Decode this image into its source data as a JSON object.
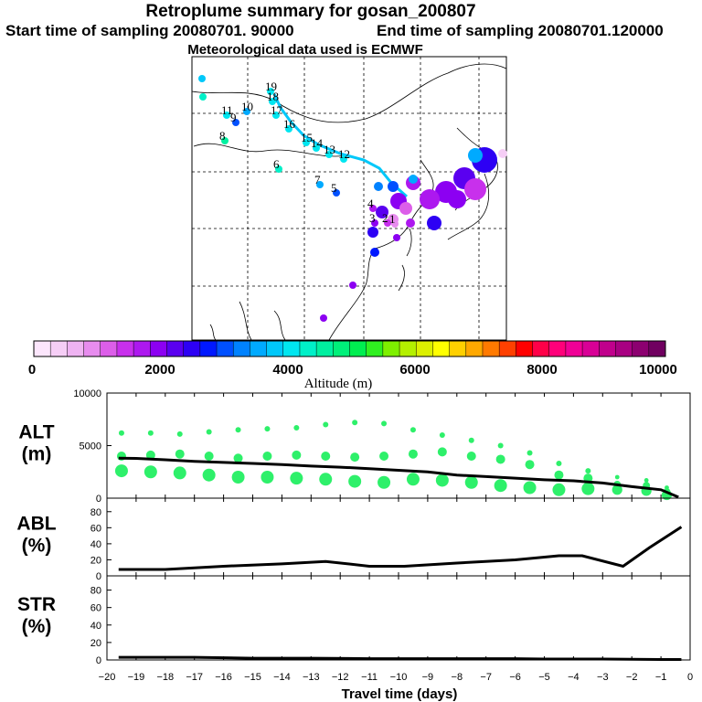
{
  "header": {
    "title": "Retroplume summary for gosan_200807",
    "start": "Start time of sampling 20080701. 90000",
    "end": "End time of sampling 20080701.120000",
    "met": "Meteorological data used is ECMWF"
  },
  "colorbar": {
    "label": "Altitude (m)",
    "ticks": [
      "0",
      "2000",
      "4000",
      "6000",
      "8000",
      "10000"
    ],
    "colors": [
      "#fce6fc",
      "#f6cef6",
      "#efb3f2",
      "#e78cee",
      "#dc5ee9",
      "#c830ec",
      "#ad18ef",
      "#8c00f2",
      "#5a00f0",
      "#2d00f4",
      "#0018ff",
      "#0050ff",
      "#0082ff",
      "#00aaff",
      "#00c8fa",
      "#00e6f0",
      "#00f0c8",
      "#00f0a0",
      "#00f07a",
      "#00ee50",
      "#30f020",
      "#7ef000",
      "#b4f000",
      "#dcf000",
      "#ffff00",
      "#ffd000",
      "#ffa800",
      "#ff7a00",
      "#ff4000",
      "#ff0000",
      "#ff0048",
      "#ff007a",
      "#f00096",
      "#d80096",
      "#c0008c",
      "#a80082",
      "#8c0070",
      "#700060"
    ]
  },
  "map": {
    "lat_labels": [],
    "markers": [
      {
        "n": "19",
        "c": "#00e6f0"
      },
      {
        "n": "18",
        "c": "#00e6f0"
      },
      {
        "n": "17",
        "c": "#00e6f0"
      },
      {
        "n": "16",
        "c": "#00e6f0"
      },
      {
        "n": "15",
        "c": "#00e6f0"
      },
      {
        "n": "14",
        "c": "#00e6f0"
      },
      {
        "n": "13",
        "c": "#00e6f0"
      },
      {
        "n": "12",
        "c": "#00e6f0"
      },
      {
        "n": "11",
        "c": "#00e6f0"
      },
      {
        "n": "10",
        "c": "#00aaff"
      },
      {
        "n": "9",
        "c": "#0050ff"
      },
      {
        "n": "8",
        "c": "#00f0a0"
      },
      {
        "n": "7",
        "c": "#00aaff"
      },
      {
        "n": "6",
        "c": "#00f0c8"
      },
      {
        "n": "5",
        "c": "#0050ff"
      },
      {
        "n": "4",
        "c": "#ad18ef"
      },
      {
        "n": "3",
        "c": "#8c00f2"
      },
      {
        "n": "2",
        "c": "#c830ec"
      },
      {
        "n": "1",
        "c": "#e78cee"
      }
    ]
  },
  "chart_data": [
    {
      "type": "scatter",
      "title": "ALT (m)",
      "ylabel_line1": "ALT",
      "ylabel_line2": "(m)",
      "ylim": [
        0,
        10000
      ],
      "yticks": [
        "10000",
        "5000",
        "0"
      ],
      "ytick_values": [
        10000,
        5000,
        0
      ],
      "xlim": [
        -20,
        0
      ],
      "mean_line": {
        "x": [
          -19.6,
          -19,
          -18,
          -17,
          -16,
          -15,
          -14,
          -13,
          -12,
          -11,
          -10,
          -9,
          -8,
          -7,
          -6,
          -5,
          -4,
          -3,
          -2,
          -1,
          -0.4
        ],
        "y": [
          3800,
          3780,
          3650,
          3500,
          3400,
          3300,
          3200,
          3050,
          2950,
          2800,
          2650,
          2500,
          2200,
          2050,
          1900,
          1750,
          1650,
          1450,
          1100,
          800,
          100
        ]
      },
      "clusters": [
        {
          "x": -19.5,
          "y": [
            6200,
            4000,
            2600
          ]
        },
        {
          "x": -18.5,
          "y": [
            6200,
            4100,
            2500
          ]
        },
        {
          "x": -17.5,
          "y": [
            6100,
            4200,
            2400
          ]
        },
        {
          "x": -16.5,
          "y": [
            6300,
            4000,
            2200
          ]
        },
        {
          "x": -15.5,
          "y": [
            6500,
            3800,
            2000
          ]
        },
        {
          "x": -14.5,
          "y": [
            6600,
            4000,
            2000
          ]
        },
        {
          "x": -13.5,
          "y": [
            6700,
            4100,
            1900
          ]
        },
        {
          "x": -12.5,
          "y": [
            7000,
            4000,
            1800
          ]
        },
        {
          "x": -11.5,
          "y": [
            7200,
            3900,
            1600
          ]
        },
        {
          "x": -10.5,
          "y": [
            7100,
            4000,
            1500
          ]
        },
        {
          "x": -9.5,
          "y": [
            6500,
            4200,
            1800
          ]
        },
        {
          "x": -8.5,
          "y": [
            6000,
            4400,
            1700
          ]
        },
        {
          "x": -7.5,
          "y": [
            5500,
            4000,
            1500
          ]
        },
        {
          "x": -6.5,
          "y": [
            5000,
            3700,
            1200
          ]
        },
        {
          "x": -5.5,
          "y": [
            4300,
            3200,
            1000
          ]
        },
        {
          "x": -4.5,
          "y": [
            3300,
            2200,
            800
          ]
        },
        {
          "x": -3.5,
          "y": [
            2600,
            1900,
            900
          ]
        },
        {
          "x": -2.5,
          "y": [
            2000,
            1300,
            800
          ]
        },
        {
          "x": -1.5,
          "y": [
            1700,
            1200,
            700
          ]
        },
        {
          "x": -0.8,
          "y": [
            1000,
            600,
            300
          ]
        }
      ]
    },
    {
      "type": "line",
      "title": "ABL (%)",
      "ylabel_line1": "ABL",
      "ylabel_line2": "(%)",
      "ylim": [
        0,
        90
      ],
      "yticks": [
        "80",
        "60",
        "40",
        "20",
        "0"
      ],
      "ytick_values": [
        80,
        60,
        40,
        20,
        0
      ],
      "x": [
        -19.6,
        -18,
        -16,
        -14,
        -12.5,
        -11,
        -9.8,
        -8,
        -6,
        -4.5,
        -3.7,
        -2.3,
        -1.4,
        -0.3
      ],
      "y": [
        8,
        8,
        12,
        15,
        18,
        12,
        12,
        16,
        20,
        25,
        25,
        12,
        35,
        61
      ]
    },
    {
      "type": "line",
      "title": "STR (%)",
      "ylabel_line1": "STR",
      "ylabel_line2": "(%)",
      "ylim": [
        0,
        90
      ],
      "yticks": [
        "80",
        "60",
        "40",
        "20",
        "0"
      ],
      "ytick_values": [
        80,
        60,
        40,
        20,
        0
      ],
      "x": [
        -19.6,
        -17,
        -15,
        -13,
        -11,
        -9,
        -7,
        -6,
        -5,
        -3,
        -1,
        -0.3
      ],
      "y": [
        3,
        3,
        2,
        2,
        1.5,
        1.5,
        1.5,
        1.5,
        1,
        1,
        0.5,
        0.5
      ]
    }
  ],
  "xaxis": {
    "label": "Travel time (days)",
    "ticks": [
      "−20",
      "−19",
      "−18",
      "−17",
      "−16",
      "−15",
      "−14",
      "−13",
      "−12",
      "−11",
      "−10",
      "−9",
      "−8",
      "−7",
      "−6",
      "−5",
      "−4",
      "−3",
      "−2",
      "−1",
      "0"
    ],
    "tick_values": [
      -20,
      -19,
      -18,
      -17,
      -16,
      -15,
      -14,
      -13,
      -12,
      -11,
      -10,
      -9,
      -8,
      -7,
      -6,
      -5,
      -4,
      -3,
      -2,
      -1,
      0
    ]
  }
}
